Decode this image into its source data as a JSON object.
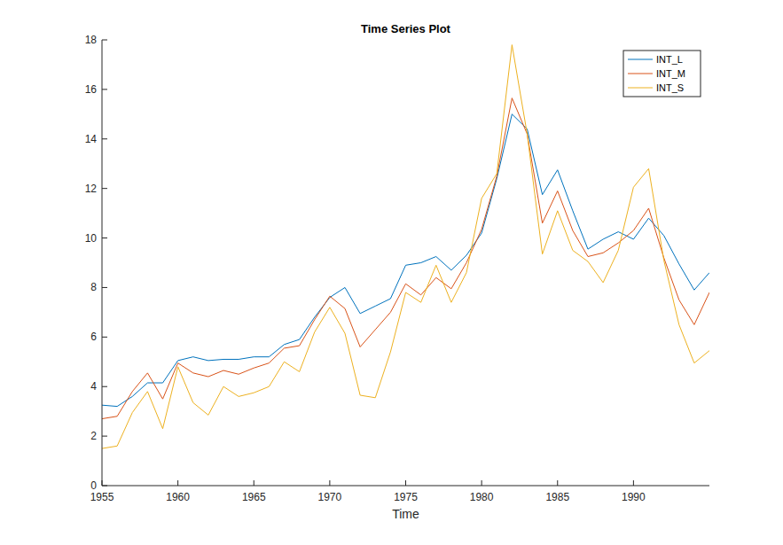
{
  "chart_data": {
    "type": "line",
    "title": "Time Series Plot",
    "x_label": "Time",
    "x": [
      1955,
      1956,
      1957,
      1958,
      1959,
      1960,
      1961,
      1962,
      1963,
      1964,
      1965,
      1966,
      1967,
      1968,
      1969,
      1970,
      1971,
      1972,
      1973,
      1974,
      1975,
      1976,
      1977,
      1978,
      1979,
      1980,
      1981,
      1982,
      1983,
      1984,
      1985,
      1986,
      1987,
      1988,
      1989,
      1990,
      1991,
      1992,
      1993,
      1994,
      1995
    ],
    "series": [
      {
        "name": "INT_L",
        "color": "#0072bd",
        "values": [
          3.25,
          3.2,
          3.6,
          4.15,
          4.15,
          5.05,
          5.2,
          5.05,
          5.1,
          5.1,
          5.2,
          5.2,
          5.7,
          5.9,
          6.8,
          7.6,
          8.0,
          6.95,
          7.25,
          7.55,
          8.9,
          9.0,
          9.25,
          8.7,
          9.3,
          10.2,
          12.4,
          15.0,
          14.4,
          11.75,
          12.75,
          11.1,
          9.55,
          9.95,
          10.25,
          9.95,
          10.8,
          10.1,
          8.95,
          7.9,
          8.6
        ]
      },
      {
        "name": "INT_M",
        "color": "#d95319",
        "values": [
          2.7,
          2.8,
          3.8,
          4.55,
          3.5,
          4.95,
          4.55,
          4.4,
          4.65,
          4.5,
          4.75,
          4.95,
          5.55,
          5.65,
          6.7,
          7.65,
          7.15,
          5.6,
          6.3,
          7.0,
          8.15,
          7.7,
          8.4,
          7.95,
          9.0,
          10.35,
          12.5,
          15.65,
          14.2,
          10.6,
          11.9,
          10.3,
          9.25,
          9.4,
          9.8,
          10.3,
          11.2,
          9.2,
          7.5,
          6.5,
          7.8
        ]
      },
      {
        "name": "INT_S",
        "color": "#edb120",
        "values": [
          1.5,
          1.6,
          2.95,
          3.8,
          2.3,
          4.8,
          3.35,
          2.85,
          4.0,
          3.6,
          3.75,
          4.0,
          5.0,
          4.6,
          6.2,
          7.2,
          6.15,
          3.65,
          3.55,
          5.4,
          7.8,
          7.4,
          8.9,
          7.4,
          8.6,
          11.6,
          12.6,
          17.8,
          14.2,
          9.35,
          11.1,
          9.5,
          9.05,
          8.2,
          9.5,
          12.05,
          12.8,
          9.1,
          6.5,
          4.95,
          5.45
        ]
      }
    ],
    "xlim": [
      1955,
      1995
    ],
    "xticks": [
      1955,
      1960,
      1965,
      1970,
      1975,
      1980,
      1985,
      1990
    ],
    "ylim": [
      0,
      18
    ],
    "yticks": [
      0,
      2,
      4,
      6,
      8,
      10,
      12,
      14,
      16,
      18
    ],
    "legend": "northeast",
    "grid": false
  }
}
